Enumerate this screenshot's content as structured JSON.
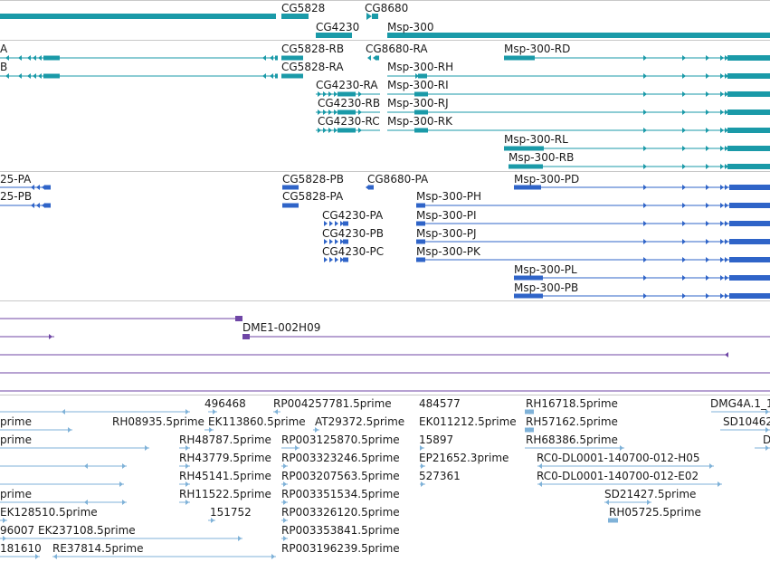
{
  "colors": {
    "gene": "#1a9aa8",
    "transcript": "#1a9aa8",
    "protein": "#2f64c8",
    "clone": "#6f46a6",
    "est": "#7fb2d8",
    "separator": "#c8c8c8"
  },
  "tracks": [
    {
      "name": "genes-track"
    },
    {
      "name": "transcripts-track"
    },
    {
      "name": "proteins-track"
    },
    {
      "name": "clones-track"
    },
    {
      "name": "est-track"
    }
  ],
  "genes": {
    "labels": [
      "CG5828",
      "CG8680",
      "CG4230",
      "Msp-300"
    ]
  },
  "transcripts": {
    "labels": [
      "A",
      "B",
      "CG5828-RB",
      "CG8680-RA",
      "Msp-300-RD",
      "CG5828-RA",
      "Msp-300-RH",
      "CG4230-RA",
      "Msp-300-RI",
      "CG4230-RB",
      "Msp-300-RJ",
      "CG4230-RC",
      "Msp-300-RK",
      "Msp-300-RL",
      "Msp-300-RB"
    ]
  },
  "proteins": {
    "labels": [
      "25-PA",
      "25-PB",
      "CG5828-PB",
      "CG8680-PA",
      "Msp-300-PD",
      "CG5828-PA",
      "Msp-300-PH",
      "CG4230-PA",
      "Msp-300-PI",
      "CG4230-PB",
      "Msp-300-PJ",
      "CG4230-PC",
      "Msp-300-PK",
      "Msp-300-PL",
      "Msp-300-PB"
    ]
  },
  "clones": {
    "labels": [
      "DME1-002H09"
    ]
  },
  "ests": {
    "labels": [
      "496468",
      "RP004257781.5prime",
      "484577",
      "RH16718.5prime",
      "DMG4A.1_1",
      "prime",
      "RH08935.5prime",
      "EK113860.5prime",
      "AT29372.5prime",
      "EK011212.5prime",
      "RH57162.5prime",
      "SD10462",
      "prime",
      "RH48787.5prime",
      "RP003125870.5prime",
      "15897",
      "RH68386.5prime",
      "D",
      "RH43779.5prime",
      "RP003323246.5prime",
      "EP21652.3prime",
      "RC0-DL0001-140700-012-H05",
      "RH45141.5prime",
      "RP003207563.5prime",
      "527361",
      "RC0-DL0001-140700-012-E02",
      "prime",
      "RH11522.5prime",
      "RP003351534.5prime",
      "SD21427.5prime",
      "EK128510.5prime",
      "151752",
      "RP003326120.5prime",
      "RH05725.5prime",
      "96007",
      "EK237108.5prime",
      "RP003353841.5prime",
      "181610",
      "RE37814.5prime",
      "RP003196239.5prime"
    ]
  }
}
